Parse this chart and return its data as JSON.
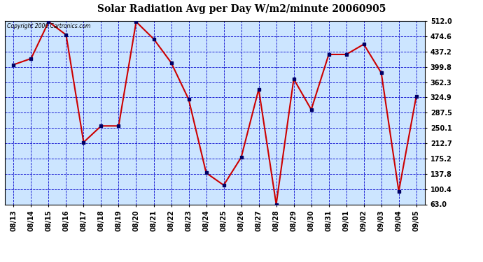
{
  "title": "Solar Radiation Avg per Day W/m2/minute 20060905",
  "copyright": "Copyright 2006 Cartronics.com",
  "dates": [
    "08/13",
    "08/14",
    "08/15",
    "08/16",
    "08/17",
    "08/18",
    "08/19",
    "08/20",
    "08/21",
    "08/22",
    "08/23",
    "08/24",
    "08/25",
    "08/26",
    "08/27",
    "08/28",
    "08/29",
    "08/30",
    "08/31",
    "09/01",
    "09/02",
    "09/03",
    "09/04",
    "09/05"
  ],
  "values": [
    405,
    420,
    510,
    478,
    215,
    255,
    255,
    510,
    468,
    410,
    320,
    140,
    110,
    178,
    345,
    63,
    370,
    295,
    430,
    430,
    455,
    385,
    95,
    328
  ],
  "yticks": [
    63.0,
    100.4,
    137.8,
    175.2,
    212.7,
    250.1,
    287.5,
    324.9,
    362.3,
    399.8,
    437.2,
    474.6,
    512.0
  ],
  "line_color": "#cc0000",
  "marker_color": "#000066",
  "bg_color": "#cce5ff",
  "grid_color": "#0000cc",
  "title_color": "#000000",
  "copyright_color": "#000000",
  "border_color": "#000000",
  "white_bg": "#ffffff"
}
